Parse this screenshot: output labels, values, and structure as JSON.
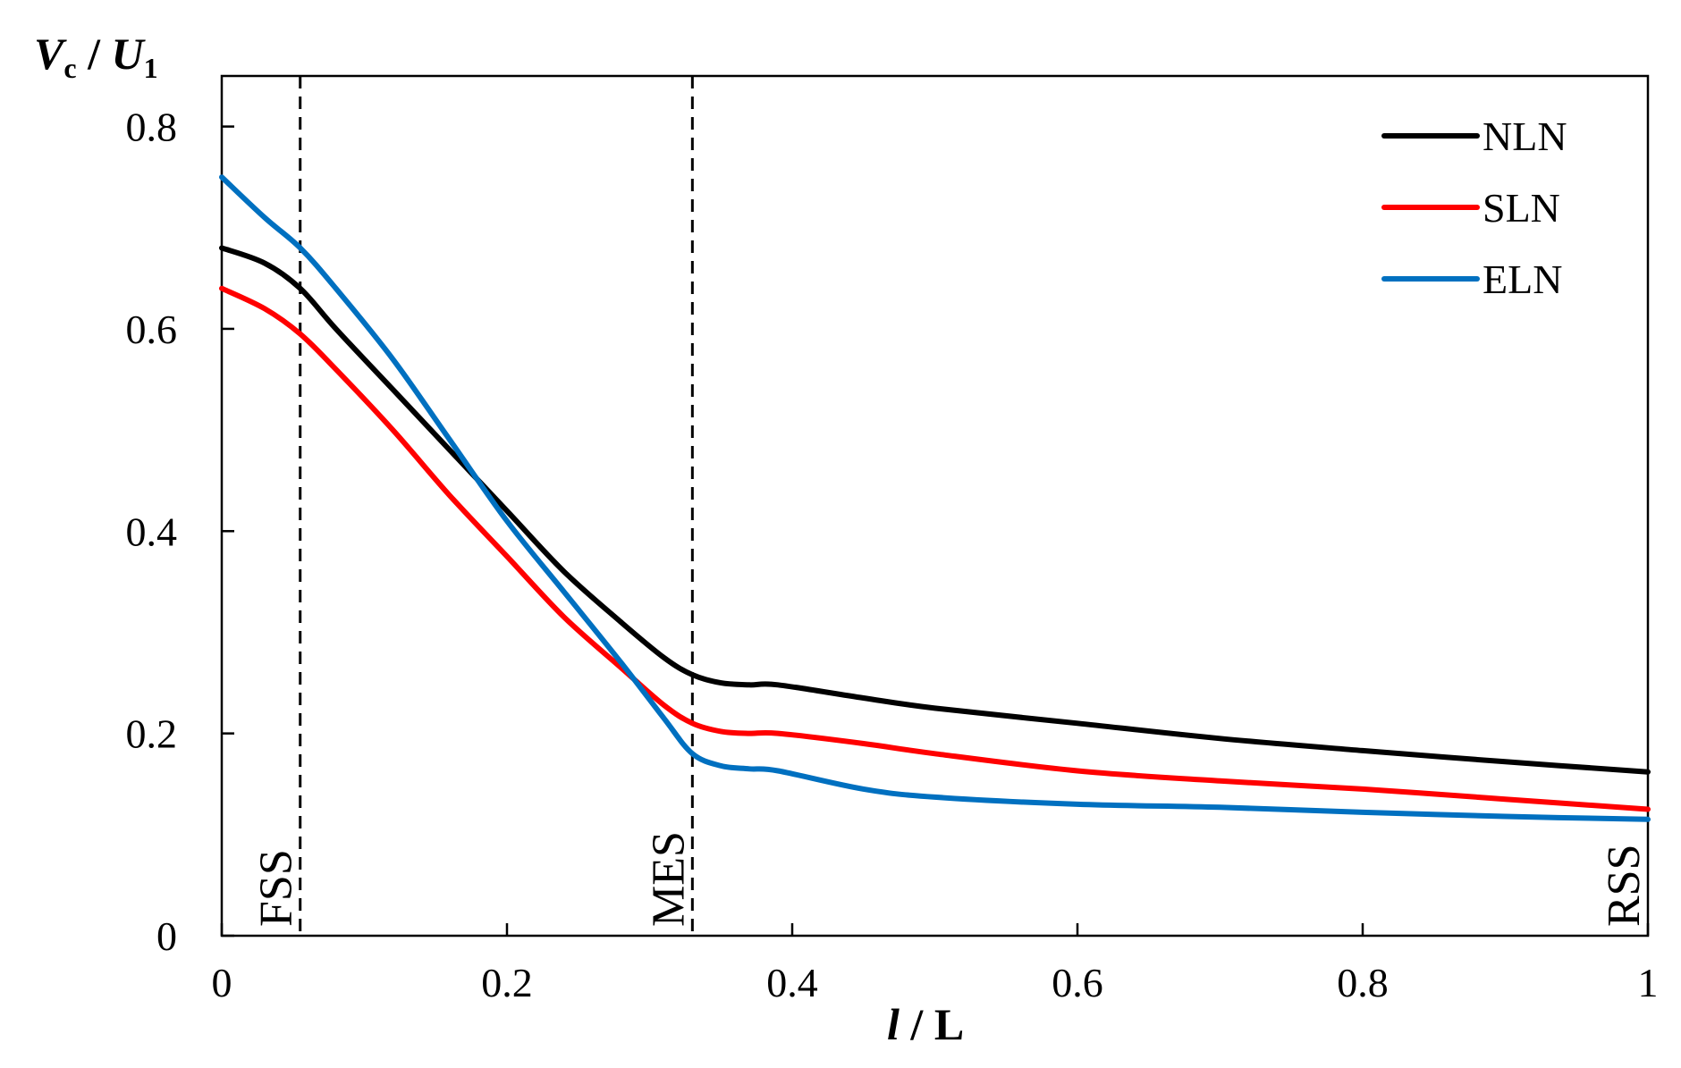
{
  "chart_data": {
    "type": "line",
    "xlabel": {
      "var": "l",
      "sep": " / ",
      "rest": "L"
    },
    "ylabel": {
      "var": "V",
      "sub": "c",
      "sep": " / ",
      "var2": "U",
      "sub2": "1"
    },
    "xlim": [
      0,
      1
    ],
    "ylim": [
      0,
      0.85
    ],
    "x_ticks": [
      "0",
      "0.2",
      "0.4",
      "0.6",
      "0.8",
      "1"
    ],
    "y_ticks": [
      "0",
      "0.2",
      "0.4",
      "0.6",
      "0.8"
    ],
    "grid": false,
    "legend_position": "top-right",
    "vertical_markers": [
      {
        "x": 0.055,
        "label": "FSS",
        "style": "dashed"
      },
      {
        "x": 0.33,
        "label": "MES",
        "style": "dashed"
      },
      {
        "x": 1.0,
        "label": "RSS",
        "style": "none"
      }
    ],
    "series": [
      {
        "name": "NLN",
        "color": "#000000",
        "x": [
          0,
          0.03,
          0.055,
          0.08,
          0.12,
          0.16,
          0.2,
          0.24,
          0.28,
          0.31,
          0.33,
          0.35,
          0.37,
          0.39,
          0.45,
          0.5,
          0.6,
          0.7,
          0.8,
          0.9,
          1.0
        ],
        "y": [
          0.68,
          0.665,
          0.64,
          0.6,
          0.54,
          0.48,
          0.42,
          0.36,
          0.31,
          0.275,
          0.258,
          0.25,
          0.248,
          0.248,
          0.235,
          0.225,
          0.21,
          0.195,
          0.183,
          0.172,
          0.162
        ]
      },
      {
        "name": "SLN",
        "color": "#ff0000",
        "x": [
          0,
          0.03,
          0.055,
          0.08,
          0.12,
          0.16,
          0.2,
          0.24,
          0.28,
          0.31,
          0.33,
          0.35,
          0.37,
          0.39,
          0.45,
          0.5,
          0.6,
          0.7,
          0.8,
          0.9,
          1.0
        ],
        "y": [
          0.64,
          0.62,
          0.595,
          0.56,
          0.5,
          0.435,
          0.375,
          0.315,
          0.265,
          0.228,
          0.21,
          0.202,
          0.2,
          0.2,
          0.19,
          0.18,
          0.163,
          0.153,
          0.145,
          0.135,
          0.125
        ]
      },
      {
        "name": "ELN",
        "color": "#0070c0",
        "x": [
          0,
          0.03,
          0.055,
          0.08,
          0.12,
          0.16,
          0.2,
          0.24,
          0.28,
          0.31,
          0.33,
          0.35,
          0.37,
          0.39,
          0.45,
          0.5,
          0.6,
          0.7,
          0.8,
          0.9,
          1.0
        ],
        "y": [
          0.75,
          0.71,
          0.68,
          0.64,
          0.57,
          0.49,
          0.41,
          0.34,
          0.27,
          0.215,
          0.18,
          0.168,
          0.165,
          0.163,
          0.145,
          0.137,
          0.13,
          0.127,
          0.122,
          0.118,
          0.115
        ]
      }
    ]
  }
}
